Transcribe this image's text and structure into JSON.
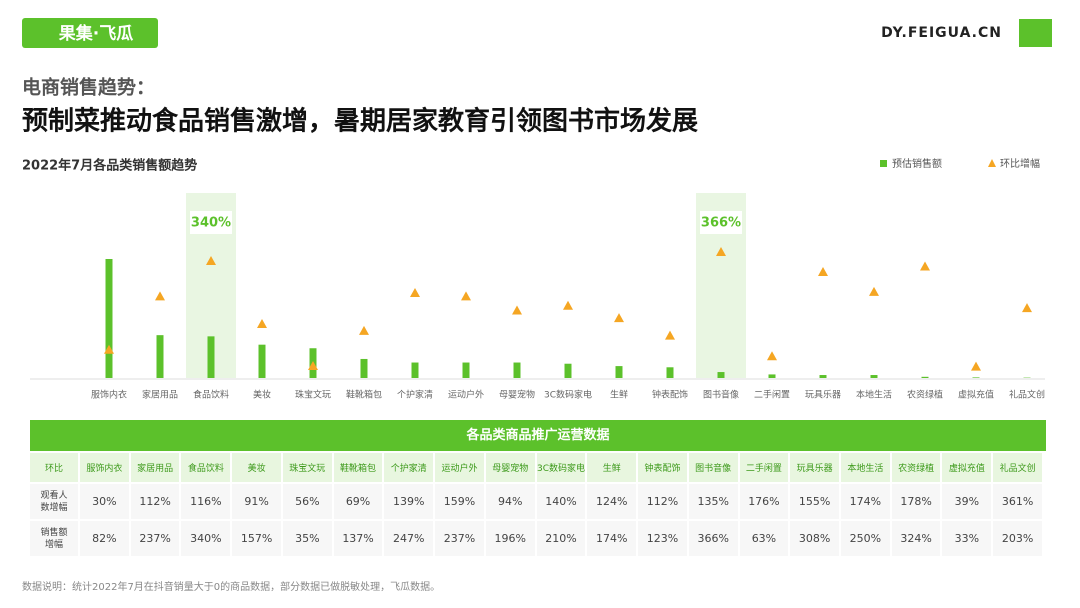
{
  "header": {
    "logo": "果集·飞瓜",
    "site": "DY.FEIGUA.CN"
  },
  "heading": {
    "kicker": "电商销售趋势：",
    "title": "预制菜推动食品销售激增，暑期居家教育引领图书市场发展"
  },
  "chart_data": {
    "type": "bar_triangle",
    "title": "2022年7月各品类销售额趋势",
    "categories": [
      "服饰内衣",
      "家居用品",
      "食品饮料",
      "美妆",
      "珠宝文玩",
      "鞋靴箱包",
      "个护家清",
      "运动户外",
      "母婴宠物",
      "3C数码家电",
      "生鲜",
      "钟表配饰",
      "图书音像",
      "二手闲置",
      "玩具乐器",
      "本地生活",
      "农资绿植",
      "虚拟充值",
      "礼品文创"
    ],
    "series": [
      {
        "name": "预估销售额",
        "color": "#5cc12b",
        "marker": "bar",
        "values": [
          100,
          36,
          35,
          28,
          25,
          16,
          13,
          13,
          13,
          12,
          10,
          9,
          5,
          3,
          2.5,
          2.5,
          1,
          0.5,
          0.3
        ]
      },
      {
        "name": "环比增幅",
        "color": "#f5a623",
        "marker": "triangle",
        "values": [
          82,
          237,
          340,
          157,
          35,
          137,
          247,
          237,
          196,
          210,
          174,
          123,
          366,
          63,
          308,
          250,
          324,
          33,
          203
        ],
        "value_labels": [
          null,
          null,
          "340%",
          null,
          null,
          null,
          null,
          null,
          null,
          null,
          null,
          null,
          "366%",
          null,
          null,
          null,
          null,
          null,
          null
        ]
      }
    ],
    "legend": "top-right"
  },
  "table": {
    "title": "各品类商品推广运营数据",
    "corner": "环比",
    "rows": [
      [
        "观看人数增幅",
        "30%",
        "112%",
        "116%",
        "91%",
        "56%",
        "69%",
        "139%",
        "159%",
        "94%",
        "140%",
        "124%",
        "112%",
        "135%",
        "176%",
        "155%",
        "174%",
        "178%",
        "39%",
        "361%"
      ],
      [
        "销售额增幅",
        "82%",
        "237%",
        "340%",
        "157%",
        "35%",
        "137%",
        "247%",
        "237%",
        "196%",
        "210%",
        "174%",
        "123%",
        "366%",
        "63%",
        "308%",
        "250%",
        "324%",
        "33%",
        "203%"
      ]
    ]
  },
  "footnote": "数据说明：统计2022年7月在抖音销量大于0的商品数据，部分数据已做脱敏处理，飞瓜数据。"
}
